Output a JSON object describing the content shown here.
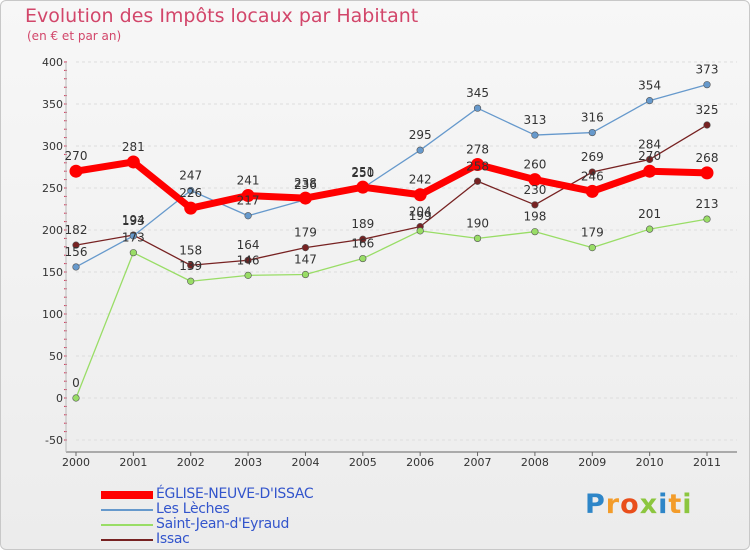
{
  "chart_data": {
    "type": "line",
    "title": "Evolution des Impôts locaux par Habitant",
    "subtitle": "(en € et par an)",
    "categories": [
      "2000",
      "2001",
      "2002",
      "2003",
      "2004",
      "2005",
      "2006",
      "2007",
      "2008",
      "2009",
      "2010",
      "2011"
    ],
    "ylim": [
      -50,
      400
    ],
    "yticks": [
      -50,
      0,
      50,
      100,
      150,
      200,
      250,
      300,
      350,
      400
    ],
    "series": [
      {
        "name": "ÉGLISE-NEUVE-D'ISSAC",
        "color": "#ff0000",
        "values": [
          270,
          281,
          226,
          241,
          238,
          251,
          242,
          278,
          260,
          246,
          270,
          268
        ]
      },
      {
        "name": "Les Lèches",
        "color": "#6699cc",
        "values": [
          156,
          193,
          247,
          217,
          236,
          250,
          295,
          345,
          313,
          316,
          354,
          373
        ]
      },
      {
        "name": "Saint-Jean-d'Eyraud",
        "color": "#99dd66",
        "values": [
          0,
          173,
          139,
          146,
          147,
          166,
          199,
          190,
          198,
          179,
          201,
          213
        ]
      },
      {
        "name": "Issac",
        "color": "#772222",
        "values": [
          182,
          194,
          158,
          164,
          179,
          189,
          204,
          258,
          230,
          269,
          284,
          325
        ]
      }
    ]
  },
  "brand": {
    "letters": [
      "P",
      "r",
      "o",
      "x",
      "i",
      "t",
      "i"
    ],
    "colors": [
      "#2e86c8",
      "#f39c2a",
      "#e94e1b",
      "#8cc63f",
      "#2e86c8",
      "#f39c2a",
      "#8cc63f"
    ]
  }
}
